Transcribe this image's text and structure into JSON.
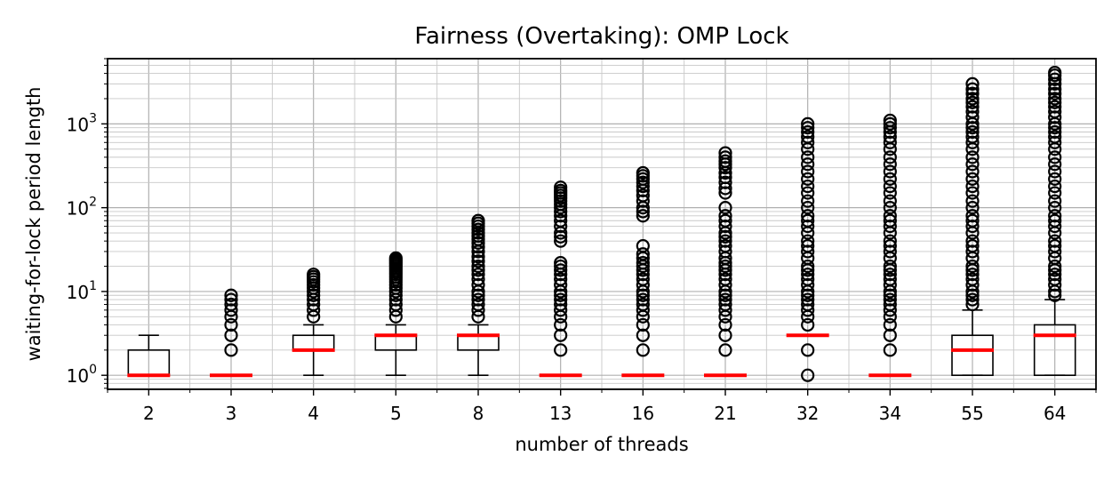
{
  "chart_data": {
    "type": "box",
    "title": "Fairness (Overtaking): OMP Lock",
    "xlabel": "number of threads",
    "ylabel": "waiting-for-lock period length",
    "yscale": "log",
    "ylim": [
      0.68,
      6000
    ],
    "grid": true,
    "y_tick_labels": [
      "10^0",
      "10^1",
      "10^2",
      "10^3"
    ],
    "median_color": "#ff0000",
    "box_color": "#000000",
    "categories": [
      "2",
      "3",
      "4",
      "5",
      "8",
      "13",
      "16",
      "21",
      "32",
      "34",
      "55",
      "64"
    ],
    "boxes": [
      {
        "label": "2",
        "whislo": 1,
        "q1": 1,
        "med": 1,
        "q3": 2,
        "whishi": 3,
        "fliers": []
      },
      {
        "label": "3",
        "whislo": 1,
        "q1": 1,
        "med": 1,
        "q3": 1,
        "whishi": 1,
        "fliers": [
          2,
          3,
          4,
          5,
          6,
          7,
          8,
          9
        ]
      },
      {
        "label": "4",
        "whislo": 1,
        "q1": 2,
        "med": 2,
        "q3": 3,
        "whishi": 4,
        "fliers": [
          5,
          6,
          7,
          8,
          9,
          10,
          11,
          12,
          13,
          14,
          15,
          16
        ]
      },
      {
        "label": "5",
        "whislo": 1,
        "q1": 2,
        "med": 3,
        "q3": 3,
        "whishi": 4,
        "fliers": [
          5,
          6,
          7,
          8,
          9,
          10,
          11,
          12,
          13,
          14,
          15,
          16,
          17,
          18,
          19,
          20,
          21,
          22,
          23,
          24,
          25
        ]
      },
      {
        "label": "8",
        "whislo": 1,
        "q1": 2,
        "med": 3,
        "q3": 3,
        "whishi": 4,
        "fliers": [
          5,
          6,
          7,
          8,
          9,
          10,
          12,
          14,
          16,
          18,
          20,
          23,
          26,
          30,
          34,
          38,
          42,
          46,
          50,
          55,
          60,
          65,
          70
        ]
      },
      {
        "label": "13",
        "whislo": 1,
        "q1": 1,
        "med": 1,
        "q3": 1,
        "whishi": 1,
        "fliers": [
          2,
          3,
          4,
          5,
          6,
          7,
          8,
          9,
          10,
          12,
          14,
          16,
          18,
          20,
          22,
          40,
          45,
          50,
          60,
          70,
          80,
          90,
          100,
          110,
          120,
          130,
          140,
          150,
          160,
          175
        ]
      },
      {
        "label": "16",
        "whislo": 1,
        "q1": 1,
        "med": 1,
        "q3": 1,
        "whishi": 1,
        "fliers": [
          2,
          3,
          4,
          5,
          6,
          7,
          8,
          9,
          10,
          12,
          14,
          16,
          18,
          20,
          22,
          25,
          28,
          35,
          80,
          90,
          100,
          120,
          140,
          160,
          180,
          200,
          220,
          240,
          260
        ]
      },
      {
        "label": "21",
        "whislo": 1,
        "q1": 1,
        "med": 1,
        "q3": 1,
        "whishi": 1,
        "fliers": [
          2,
          3,
          4,
          5,
          6,
          7,
          8,
          9,
          10,
          12,
          14,
          16,
          18,
          20,
          22,
          25,
          30,
          35,
          40,
          45,
          50,
          60,
          70,
          80,
          100,
          150,
          170,
          200,
          230,
          260,
          300,
          330,
          360,
          400,
          450
        ]
      },
      {
        "label": "32",
        "whislo": 3,
        "q1": 3,
        "med": 3,
        "q3": 3,
        "whishi": 3,
        "fliers": [
          1,
          2,
          4,
          5,
          6,
          7,
          8,
          9,
          10,
          12,
          14,
          16,
          18,
          20,
          25,
          30,
          35,
          40,
          50,
          60,
          70,
          80,
          100,
          120,
          150,
          180,
          220,
          270,
          330,
          400,
          500,
          600,
          700,
          800,
          900,
          1000
        ]
      },
      {
        "label": "34",
        "whislo": 1,
        "q1": 1,
        "med": 1,
        "q3": 1,
        "whishi": 1,
        "fliers": [
          2,
          3,
          4,
          5,
          6,
          7,
          8,
          9,
          10,
          12,
          14,
          16,
          18,
          20,
          25,
          30,
          35,
          40,
          50,
          60,
          70,
          80,
          100,
          120,
          150,
          180,
          220,
          270,
          330,
          400,
          500,
          600,
          700,
          800,
          900,
          1000,
          1100
        ]
      },
      {
        "label": "55",
        "whislo": 1,
        "q1": 1,
        "med": 2,
        "q3": 3,
        "whishi": 6,
        "fliers": [
          7,
          8,
          9,
          10,
          12,
          14,
          16,
          18,
          20,
          25,
          30,
          35,
          40,
          50,
          60,
          70,
          80,
          100,
          120,
          150,
          180,
          220,
          270,
          330,
          400,
          500,
          600,
          700,
          800,
          900,
          1000,
          1200,
          1400,
          1600,
          1800,
          2000,
          2300,
          2600,
          3000
        ]
      },
      {
        "label": "64",
        "whislo": 1,
        "q1": 1,
        "med": 3,
        "q3": 4,
        "whishi": 8,
        "fliers": [
          9,
          10,
          12,
          14,
          16,
          18,
          20,
          25,
          30,
          35,
          40,
          50,
          60,
          70,
          80,
          100,
          120,
          150,
          180,
          220,
          270,
          330,
          400,
          500,
          600,
          700,
          800,
          900,
          1000,
          1200,
          1400,
          1600,
          1800,
          2000,
          2300,
          2600,
          3000,
          3400,
          3800,
          4100
        ]
      }
    ]
  }
}
